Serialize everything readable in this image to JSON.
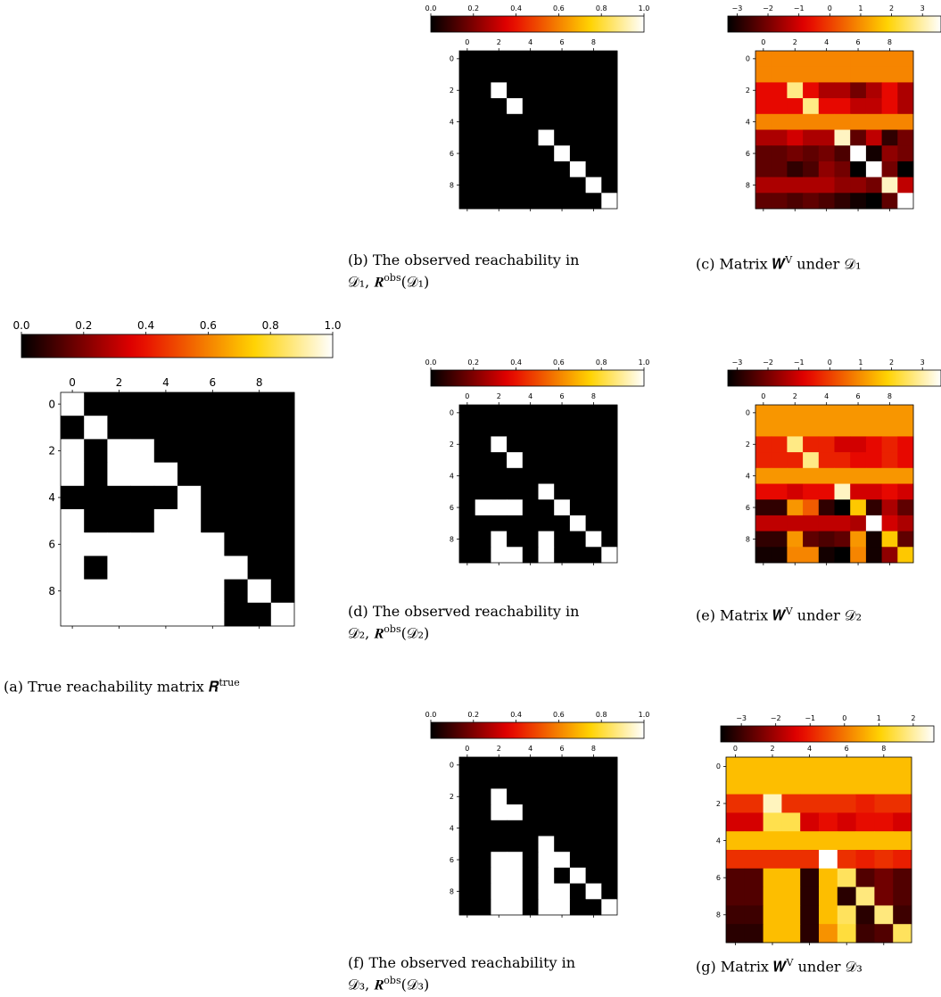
{
  "colors": {
    "cmap": [
      "#000000",
      "#e60000",
      "#ffd200",
      "#ffffff"
    ]
  },
  "figures": [
    {
      "id": "a",
      "kind": "binary",
      "matrix": [
        "1000000000",
        "0100000000",
        "1011000000",
        "1011100000",
        "0000010000",
        "1000110000",
        "1111111000",
        "1011111100",
        "1111111010",
        "1111111001"
      ]
    },
    {
      "id": "b",
      "kind": "binary",
      "matrix": [
        "0000000000",
        "0000000000",
        "0010000000",
        "0001000000",
        "0000000000",
        "0000010000",
        "0000001000",
        "0000000100",
        "0000000010",
        "0000000001"
      ]
    },
    {
      "id": "c",
      "kind": "heat",
      "vmin": -3,
      "vmax": 3.6,
      "matrix": [
        [
          1.0,
          1.0,
          1.0,
          1.0,
          1.0,
          1.0,
          1.0,
          1.0,
          1.0,
          1.0
        ],
        [
          1.0,
          1.0,
          1.0,
          1.0,
          1.0,
          1.0,
          1.0,
          1.0,
          1.0,
          1.0
        ],
        [
          -0.5,
          -0.5,
          2.8,
          -0.5,
          -1.2,
          -1.2,
          -1.8,
          -1.2,
          -0.5,
          -1.2
        ],
        [
          -0.5,
          -0.5,
          -0.5,
          2.8,
          -0.5,
          -0.5,
          -1.0,
          -1.0,
          -0.5,
          -1.2
        ],
        [
          1.0,
          1.0,
          1.0,
          1.0,
          1.0,
          1.0,
          1.0,
          1.0,
          1.0,
          1.0
        ],
        [
          -1.2,
          -1.2,
          -0.8,
          -1.2,
          -1.2,
          3.2,
          -2.0,
          -1.0,
          -2.5,
          -1.8
        ],
        [
          -2.0,
          -2.0,
          -1.8,
          -2.0,
          -1.8,
          -2.2,
          3.6,
          -2.8,
          -1.5,
          -1.8
        ],
        [
          -2.0,
          -2.0,
          -2.5,
          -2.2,
          -1.5,
          -1.8,
          -3.0,
          3.6,
          -1.8,
          -3.0
        ],
        [
          -1.2,
          -1.2,
          -1.2,
          -1.2,
          -1.2,
          -1.5,
          -1.5,
          -1.8,
          3.2,
          -1.0
        ],
        [
          -2.0,
          -2.0,
          -2.2,
          -2.0,
          -2.2,
          -2.5,
          -2.8,
          -3.0,
          -2.0,
          3.6
        ]
      ]
    },
    {
      "id": "d",
      "kind": "binary",
      "matrix": [
        "0000000000",
        "0000000000",
        "0010000000",
        "0001000000",
        "0000000000",
        "0000010000",
        "0111001000",
        "0000000100",
        "0010010010",
        "0011010001"
      ]
    },
    {
      "id": "e",
      "kind": "heat",
      "vmin": -3,
      "vmax": 3.6,
      "matrix": [
        [
          1.2,
          1.2,
          1.2,
          1.2,
          1.2,
          1.2,
          1.2,
          1.2,
          1.2,
          1.2
        ],
        [
          1.2,
          1.2,
          1.2,
          1.2,
          1.2,
          1.2,
          1.2,
          1.2,
          1.2,
          1.2
        ],
        [
          -0.2,
          -0.2,
          2.8,
          -0.2,
          -0.2,
          -0.8,
          -0.8,
          -0.5,
          -0.2,
          -0.5
        ],
        [
          -0.2,
          -0.2,
          -0.2,
          2.8,
          -0.2,
          -0.2,
          -0.5,
          -0.5,
          -0.2,
          -0.5
        ],
        [
          1.2,
          1.2,
          1.2,
          1.2,
          1.2,
          1.2,
          1.2,
          1.2,
          1.2,
          1.2
        ],
        [
          -0.5,
          -0.5,
          -0.8,
          -0.5,
          -0.5,
          3.2,
          -0.8,
          -0.8,
          -0.5,
          -0.8
        ],
        [
          -2.5,
          -2.5,
          1.2,
          0.5,
          -2.5,
          -3.0,
          1.8,
          -2.5,
          -1.2,
          -2.0
        ],
        [
          -1.0,
          -1.0,
          -1.0,
          -1.0,
          -1.0,
          -1.0,
          -1.2,
          3.6,
          -0.8,
          -1.2
        ],
        [
          -2.5,
          -2.5,
          1.2,
          -2.0,
          -2.2,
          -2.0,
          1.2,
          -2.8,
          1.8,
          -2.0
        ],
        [
          -2.8,
          -2.8,
          1.0,
          1.0,
          -2.8,
          -3.0,
          1.0,
          -2.8,
          -1.5,
          1.8
        ]
      ]
    },
    {
      "id": "f",
      "kind": "binary",
      "matrix": [
        "0000000000",
        "0000000000",
        "0010000000",
        "0011000000",
        "0000000000",
        "0000010000",
        "0011011000",
        "0011010100",
        "0011011010",
        "0011011001"
      ]
    },
    {
      "id": "g",
      "kind": "heat",
      "vmin": -3.6,
      "vmax": 2.6,
      "matrix": [
        [
          0.8,
          0.8,
          0.8,
          0.8,
          0.8,
          0.8,
          0.8,
          0.8,
          0.8,
          0.8
        ],
        [
          0.8,
          0.8,
          0.8,
          0.8,
          0.8,
          0.8,
          0.8,
          0.8,
          0.8,
          0.8
        ],
        [
          -0.8,
          -0.8,
          2.2,
          -0.8,
          -0.8,
          -0.8,
          -0.8,
          -1.0,
          -0.8,
          -0.8
        ],
        [
          -1.5,
          -1.5,
          1.5,
          1.5,
          -1.5,
          -1.2,
          -1.5,
          -1.2,
          -1.2,
          -1.5
        ],
        [
          0.8,
          0.8,
          0.8,
          0.8,
          0.8,
          0.8,
          0.8,
          0.8,
          0.8,
          0.8
        ],
        [
          -0.8,
          -0.8,
          -0.8,
          -0.8,
          -0.8,
          2.6,
          -0.8,
          -1.0,
          -0.8,
          -1.0
        ],
        [
          -2.8,
          -2.8,
          0.8,
          0.8,
          -3.2,
          0.8,
          1.6,
          -2.8,
          -2.5,
          -2.8
        ],
        [
          -2.8,
          -2.8,
          0.8,
          0.8,
          -3.2,
          0.8,
          -3.2,
          1.8,
          -2.5,
          -2.8
        ],
        [
          -3.0,
          -3.0,
          0.8,
          0.8,
          -3.2,
          0.8,
          1.6,
          -3.2,
          1.8,
          -3.0
        ],
        [
          -3.2,
          -3.2,
          0.8,
          0.8,
          -3.2,
          0.3,
          1.4,
          -3.0,
          -2.8,
          1.6
        ]
      ]
    }
  ],
  "colorbars": {
    "binary": [
      "0.0",
      "0.2",
      "0.4",
      "0.6",
      "0.8",
      "1.0"
    ],
    "heat_c": [
      "−3",
      "−2",
      "−1",
      "0",
      "1",
      "2",
      "3"
    ],
    "heat_e": [
      "−3",
      "−2",
      "−1",
      "0",
      "1",
      "2",
      "3"
    ],
    "heat_g": [
      "−3",
      "−2",
      "−1",
      "0",
      "1",
      "2"
    ]
  },
  "ticks": {
    "x": [
      "0",
      "2",
      "4",
      "6",
      "8"
    ],
    "y": [
      "0",
      "2",
      "4",
      "6",
      "8"
    ]
  },
  "captions": {
    "a": "(a) True reachability matrix 𝑹",
    "a_sup": "true",
    "b_line1": "(b) The observed reachability in",
    "b_line2": "𝒟₁, 𝑹",
    "b_sup": "obs",
    "b_tail": "(𝒟₁)",
    "c": "(c) Matrix 𝑾",
    "c_sup": "V",
    "c_tail": " under 𝒟₁",
    "d_line1": "(d) The observed reachability in",
    "d_line2": "𝒟₂, 𝑹",
    "d_sup": "obs",
    "d_tail": "(𝒟₂)",
    "e": "(e) Matrix 𝑾",
    "e_sup": "V",
    "e_tail": " under 𝒟₂",
    "f_line1": "(f) The observed reachability in",
    "f_line2": "𝒟₃, 𝑹",
    "f_sup": "obs",
    "f_tail": "(𝒟₃)",
    "g": "(g) Matrix 𝑾",
    "g_sup": "V",
    "g_tail": " under 𝒟₃"
  }
}
